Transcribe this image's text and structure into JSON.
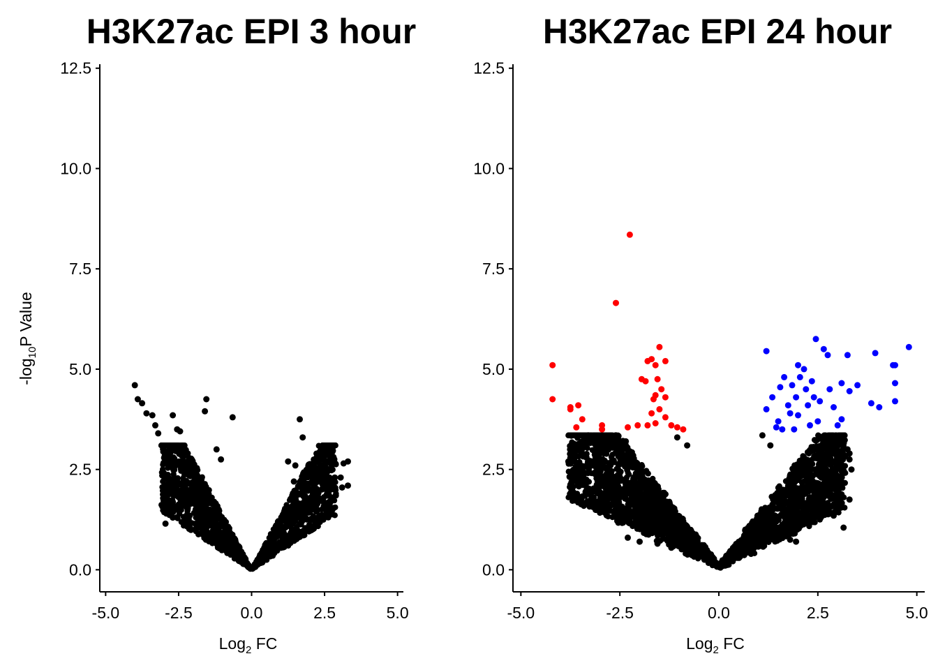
{
  "chart_data": [
    {
      "type": "scatter",
      "title": "H3K27ac EPI 3 hour",
      "xlabel": "Log2 FC",
      "ylabel": "-log10P Value",
      "xlim": [
        -5.2,
        5.2
      ],
      "ylim": [
        -0.55,
        12.6
      ],
      "xticks": [
        "-5.0",
        "-2.5",
        "0.0",
        "2.5",
        "5.0"
      ],
      "yticks": [
        "0.0",
        "2.5",
        "5.0",
        "7.5",
        "10.0",
        "12.5"
      ],
      "grid": false,
      "legend": "none",
      "colors": {
        "not_significant": "#000000",
        "down": "#ff0000",
        "up": "#0000ff"
      },
      "series": [
        {
          "color": "#000000",
          "points": [
            [
              -4.0,
              4.6
            ],
            [
              -3.9,
              4.25
            ],
            [
              -3.75,
              4.15
            ],
            [
              -3.6,
              3.9
            ],
            [
              -3.4,
              3.85
            ],
            [
              -3.3,
              3.6
            ],
            [
              -3.2,
              3.4
            ],
            [
              -2.7,
              3.85
            ],
            [
              -2.55,
              3.5
            ],
            [
              -2.45,
              3.45
            ],
            [
              -1.55,
              4.25
            ],
            [
              -1.6,
              3.95
            ],
            [
              -0.65,
              3.8
            ],
            [
              -1.2,
              3.0
            ],
            [
              -1.05,
              2.75
            ],
            [
              -2.95,
              1.15
            ],
            [
              -2.7,
              1.3
            ],
            [
              -1.5,
              0.9
            ],
            [
              1.65,
              3.75
            ],
            [
              1.75,
              3.3
            ],
            [
              1.25,
              2.7
            ],
            [
              1.5,
              2.6
            ],
            [
              1.45,
              2.2
            ],
            [
              2.15,
              2.05
            ],
            [
              2.4,
              2.0
            ],
            [
              2.55,
              2.15
            ],
            [
              2.7,
              2.05
            ],
            [
              2.85,
              2.3
            ],
            [
              3.05,
              2.3
            ],
            [
              3.15,
              2.65
            ],
            [
              3.3,
              2.7
            ],
            [
              3.3,
              2.1
            ],
            [
              3.1,
              2.05
            ],
            [
              2.5,
              1.6
            ],
            [
              2.6,
              1.55
            ],
            [
              1.3,
              0.85
            ],
            [
              1.0,
              0.55
            ]
          ]
        }
      ]
    },
    {
      "type": "scatter",
      "title": "H3K27ac EPI 24 hour",
      "xlabel": "Log2 FC",
      "ylabel": "",
      "xlim": [
        -5.2,
        5.2
      ],
      "ylim": [
        -0.55,
        12.6
      ],
      "xticks": [
        "-5.0",
        "-2.5",
        "0.0",
        "2.5",
        "5.0"
      ],
      "yticks": [
        "0.0",
        "2.5",
        "5.0",
        "7.5",
        "10.0",
        "12.5"
      ],
      "grid": false,
      "legend": "none",
      "series": [
        {
          "color": "#000000",
          "points": [
            [
              -3.8,
              2.7
            ],
            [
              -3.55,
              3.1
            ],
            [
              -3.3,
              3.35
            ],
            [
              -3.1,
              3.2
            ],
            [
              -2.85,
              3.05
            ],
            [
              -2.6,
              3.35
            ],
            [
              -2.35,
              3.2
            ],
            [
              -0.8,
              3.1
            ],
            [
              -1.05,
              3.3
            ],
            [
              -2.3,
              0.8
            ],
            [
              -2.0,
              0.7
            ],
            [
              -1.55,
              0.65
            ],
            [
              -1.2,
              0.55
            ],
            [
              1.1,
              3.35
            ],
            [
              1.3,
              3.1
            ],
            [
              3.1,
              3.25
            ],
            [
              3.25,
              3.0
            ],
            [
              3.3,
              2.9
            ],
            [
              3.35,
              2.5
            ],
            [
              3.3,
              2.75
            ],
            [
              2.85,
              2.3
            ],
            [
              2.95,
              2.0
            ],
            [
              3.05,
              1.9
            ],
            [
              3.1,
              1.65
            ],
            [
              3.3,
              1.75
            ],
            [
              3.15,
              1.05
            ],
            [
              2.9,
              1.35
            ],
            [
              1.8,
              0.75
            ],
            [
              1.95,
              0.7
            ]
          ]
        },
        {
          "color": "#ff0000",
          "points": [
            [
              -2.25,
              8.35
            ],
            [
              -2.6,
              6.65
            ],
            [
              -4.2,
              5.1
            ],
            [
              -4.2,
              4.25
            ],
            [
              -3.75,
              4.05
            ],
            [
              -3.55,
              4.1
            ],
            [
              -3.75,
              4.0
            ],
            [
              -3.6,
              3.55
            ],
            [
              -3.45,
              3.75
            ],
            [
              -2.95,
              3.6
            ],
            [
              -2.95,
              3.5
            ],
            [
              -2.3,
              3.55
            ],
            [
              -2.05,
              3.6
            ],
            [
              -1.95,
              4.75
            ],
            [
              -1.85,
              4.7
            ],
            [
              -1.8,
              5.2
            ],
            [
              -1.7,
              5.25
            ],
            [
              -1.6,
              5.1
            ],
            [
              -1.5,
              5.55
            ],
            [
              -1.35,
              5.2
            ],
            [
              -1.55,
              4.75
            ],
            [
              -1.45,
              4.5
            ],
            [
              -1.65,
              4.25
            ],
            [
              -1.35,
              4.3
            ],
            [
              -1.5,
              4.0
            ],
            [
              -1.7,
              3.9
            ],
            [
              -1.6,
              3.65
            ],
            [
              -1.35,
              3.8
            ],
            [
              -1.2,
              3.6
            ],
            [
              -1.05,
              3.55
            ],
            [
              -0.9,
              3.5
            ],
            [
              -1.8,
              3.6
            ],
            [
              -1.6,
              4.35
            ]
          ]
        },
        {
          "color": "#0000ff",
          "points": [
            [
              1.2,
              5.45
            ],
            [
              1.2,
              4.0
            ],
            [
              1.35,
              4.3
            ],
            [
              1.55,
              4.55
            ],
            [
              1.65,
              4.8
            ],
            [
              1.5,
              3.7
            ],
            [
              1.45,
              3.55
            ],
            [
              1.6,
              3.5
            ],
            [
              1.75,
              4.1
            ],
            [
              1.85,
              4.6
            ],
            [
              1.95,
              4.3
            ],
            [
              2.0,
              5.1
            ],
            [
              2.05,
              4.8
            ],
            [
              2.15,
              5.0
            ],
            [
              2.2,
              4.5
            ],
            [
              2.25,
              4.1
            ],
            [
              2.35,
              4.7
            ],
            [
              2.4,
              4.3
            ],
            [
              2.45,
              5.75
            ],
            [
              2.5,
              3.7
            ],
            [
              2.55,
              4.2
            ],
            [
              2.65,
              5.5
            ],
            [
              2.75,
              5.35
            ],
            [
              2.8,
              4.5
            ],
            [
              2.9,
              4.05
            ],
            [
              3.0,
              3.6
            ],
            [
              3.1,
              3.75
            ],
            [
              3.1,
              4.65
            ],
            [
              3.25,
              5.35
            ],
            [
              3.3,
              4.45
            ],
            [
              3.5,
              4.6
            ],
            [
              3.85,
              4.15
            ],
            [
              3.95,
              5.4
            ],
            [
              4.05,
              4.05
            ],
            [
              4.4,
              5.1
            ],
            [
              4.45,
              5.1
            ],
            [
              4.45,
              4.65
            ],
            [
              4.45,
              4.2
            ],
            [
              4.8,
              5.55
            ],
            [
              1.8,
              3.9
            ],
            [
              2.0,
              3.85
            ],
            [
              2.3,
              3.6
            ],
            [
              1.9,
              3.5
            ]
          ]
        }
      ]
    }
  ]
}
